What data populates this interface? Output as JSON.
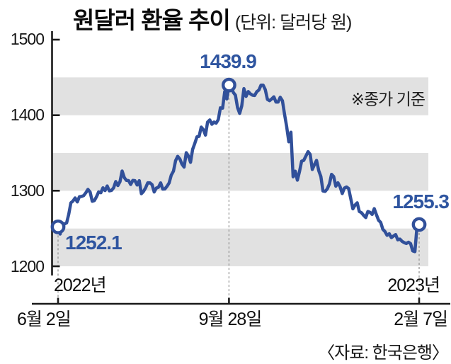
{
  "title": "원달러 환율 추이",
  "subtitle": "(단위: 달러당 원)",
  "note": "※종가 기준",
  "source": "〈자료: 한국은행〉",
  "y_axis": {
    "ticks": [
      "1500",
      "1400",
      "1300",
      "1200"
    ]
  },
  "x_axis": {
    "tick_labels": [
      "6월 2일",
      "9월 28일",
      "2월 7일"
    ],
    "year_start": "2022년",
    "year_end": "2023년"
  },
  "annotations": {
    "start": "1252.1",
    "peak": "1439.9",
    "end": "1255.3"
  },
  "colors": {
    "line": "#31509a",
    "value_label": "#2f55a0",
    "band": "#e1e1e1",
    "axis": "#1a1a1a",
    "dashed": "#909090"
  },
  "chart_data": {
    "type": "line",
    "title": "원달러 환율 추이",
    "unit": "달러당 원",
    "note": "종가 기준",
    "source": "한국은행",
    "ylim": [
      1200,
      1500
    ],
    "y_ticks": [
      1200,
      1300,
      1400,
      1500
    ],
    "x_ticks": [
      {
        "index": 0,
        "label": "6월 2일",
        "year": "2022년"
      },
      {
        "index": 80,
        "label": "9월 28일"
      },
      {
        "index": 169,
        "label": "2월 7일",
        "year": "2023년"
      }
    ],
    "highlighted_points": [
      {
        "index": 0,
        "value": 1252.1
      },
      {
        "index": 80,
        "value": 1439.9
      },
      {
        "index": 169,
        "value": 1255.3
      }
    ],
    "values": [
      1252.1,
      1242.7,
      1257.0,
      1256.0,
      1257.5,
      1268.9,
      1284.0,
      1286.4,
      1290.5,
      1285.2,
      1292.2,
      1292.4,
      1293.6,
      1297.3,
      1301.8,
      1298.2,
      1286.1,
      1287.0,
      1292.1,
      1298.4,
      1297.3,
      1303.9,
      1300.2,
      1306.3,
      1299.8,
      1300.4,
      1303.9,
      1312.1,
      1306.9,
      1312.1,
      1326.1,
      1317.4,
      1313.6,
      1313.4,
      1308.3,
      1313.7,
      1313.3,
      1307.6,
      1313.3,
      1296.1,
      1299.1,
      1304.0,
      1310.5,
      1310.3,
      1308.1,
      1298.3,
      1303.5,
      1304.6,
      1310.4,
      1302.2,
      1302.4,
      1305.8,
      1310.3,
      1320.7,
      1325.9,
      1339.8,
      1345.5,
      1342.1,
      1335.2,
      1331.3,
      1350.4,
      1346.0,
      1337.6,
      1354.9,
      1362.6,
      1371.4,
      1372.0,
      1384.2,
      1380.8,
      1373.6,
      1390.9,
      1393.7,
      1388.0,
      1391.0,
      1389.5,
      1394.2,
      1409.7,
      1409.3,
      1431.3,
      1421.5,
      1439.9,
      1438.9,
      1430.2,
      1426.5,
      1410.1,
      1402.4,
      1412.4,
      1435.2,
      1424.9,
      1431.3,
      1428.3,
      1426.5,
      1426.0,
      1431.1,
      1433.3,
      1439.8,
      1439.7,
      1433.8,
      1421.0,
      1419.2,
      1421.5,
      1424.3,
      1417.4,
      1417.4,
      1423.8,
      1419.2,
      1401.2,
      1384.9,
      1364.8,
      1377.5,
      1318.4,
      1325.9,
      1314.0,
      1325.3,
      1339.1,
      1340.2,
      1346.0,
      1351.8,
      1348.0,
      1328.2,
      1334.5,
      1340.2,
      1326.6,
      1318.8,
      1299.7,
      1299.1,
      1302.4,
      1309.0,
      1321.7,
      1318.8,
      1306.0,
      1310.5,
      1305.4,
      1296.3,
      1303.5,
      1305.0,
      1302.9,
      1289.6,
      1276.0,
      1281.0,
      1284.0,
      1272.5,
      1271.0,
      1267.5,
      1264.5,
      1272.6,
      1271.4,
      1268.6,
      1276.3,
      1268.4,
      1260.9,
      1258.0,
      1249.0,
      1246.0,
      1241.0,
      1243.0,
      1238.0,
      1240.0,
      1242.0,
      1235.0,
      1236.0,
      1233.0,
      1231.3,
      1230.2,
      1231.9,
      1230.0,
      1220.3,
      1219.3,
      1252.8,
      1255.3
    ]
  }
}
